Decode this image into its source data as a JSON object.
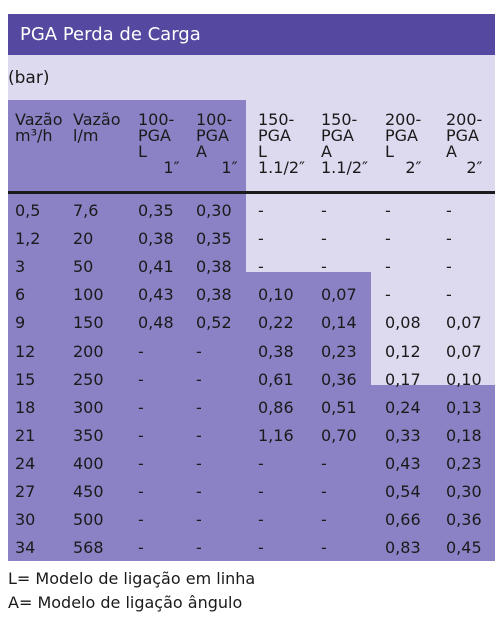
{
  "title": "PGA Perda de Carga",
  "unit": "(bar)",
  "headers": [
    "Vazão\nm³/h",
    "Vazão\nl/m",
    "100-\nPGA\nL\n     1″",
    "100-\nPGA\nA\n     1″",
    "150-\nPGA\nL\n1.1/2″",
    "150-\nPGA\nA\n1.1/2″",
    "200-\nPGA\nL\n    2″",
    "200-\nPGA\nA\n    2″"
  ],
  "rows": [
    [
      "0,5",
      "7,6",
      "0,35",
      "0,30",
      "-",
      "-",
      "-",
      "-"
    ],
    [
      "1,2",
      "20",
      "0,38",
      "0,35",
      "-",
      "-",
      "-",
      "-"
    ],
    [
      "3",
      "50",
      "0,41",
      "0,38",
      "-",
      "-",
      "-",
      "-"
    ],
    [
      "6",
      "100",
      "0,43",
      "0,38",
      "0,10",
      "0,07",
      "-",
      "-"
    ],
    [
      "9",
      "150",
      "0,48",
      "0,52",
      "0,22",
      "0,14",
      "0,08",
      "0,07"
    ],
    [
      "12",
      "200",
      "-",
      "-",
      "0,38",
      "0,23",
      "0,12",
      "0,07"
    ],
    [
      "15",
      "250",
      "-",
      "-",
      "0,61",
      "0,36",
      "0,17",
      "0,10"
    ],
    [
      "18",
      "300",
      "-",
      "-",
      "0,86",
      "0,51",
      "0,24",
      "0,13"
    ],
    [
      "21",
      "350",
      "-",
      "-",
      "1,16",
      "0,70",
      "0,33",
      "0,18"
    ],
    [
      "24",
      "400",
      "-",
      "-",
      "-",
      "-",
      "0,43",
      "0,23"
    ],
    [
      "27",
      "450",
      "-",
      "-",
      "-",
      "-",
      "0,54",
      "0,30"
    ],
    [
      "30",
      "500",
      "-",
      "-",
      "-",
      "-",
      "0,66",
      "0,36"
    ],
    [
      "34",
      "568",
      "-",
      "-",
      "-",
      "-",
      "0,83",
      "0,45"
    ]
  ],
  "footnotes": [
    "L= Modelo de ligação em linha",
    "A= Modelo de ligação ângulo"
  ],
  "colors": {
    "header_bg": "#5448a0",
    "light_fill": "#ddd9ef",
    "dark_fill": "#8b82c5"
  }
}
